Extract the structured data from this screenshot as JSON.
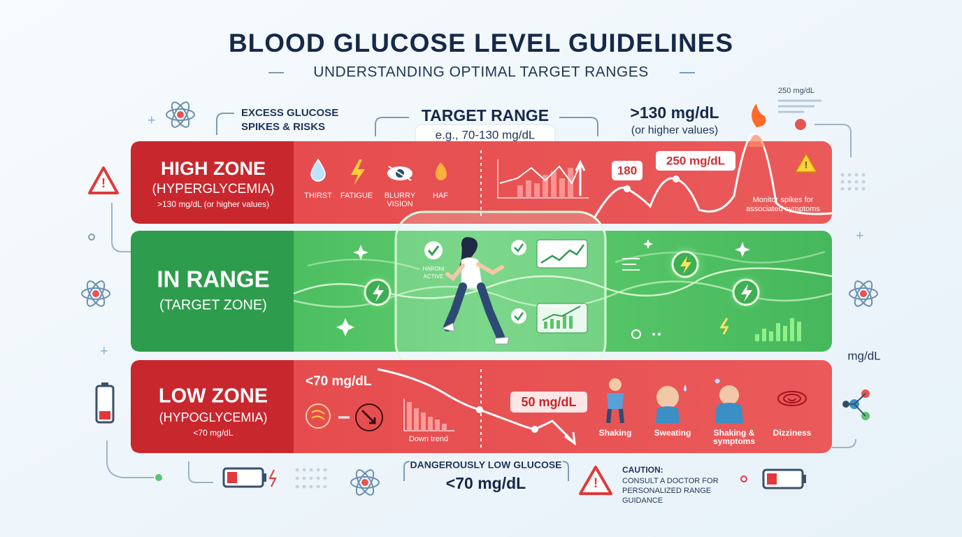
{
  "header": {
    "title": "BLOOD GLUCOSE LEVEL GUIDELINES",
    "subtitle": "UNDERSTANDING OPTIMAL TARGET RANGES"
  },
  "callouts": {
    "excess": [
      "EXCESS GLUCOSE",
      "SPIKES & RISKS"
    ],
    "target": {
      "title": "TARGET RANGE",
      "example": "e.g., 70-130 mg/dL"
    },
    "high_value": {
      "value": ">130 mg/dL",
      "note": "(or higher values)"
    },
    "legend_max": "250 mg/dL"
  },
  "zones": {
    "high": {
      "title": "HIGH ZONE",
      "subtitle": "(HYPERGLYCEMIA)",
      "range": ">130 mg/dL (or higher values)",
      "symptoms": [
        [
          "THIRST"
        ],
        [
          "FATIGUE"
        ],
        [
          "BLURRY",
          "VISION"
        ],
        [
          "HAF"
        ]
      ],
      "peaks": [
        "180",
        "250 mg/dL"
      ],
      "note": [
        "Monitor spikes for",
        "associated symptoms"
      ]
    },
    "in_range": {
      "title": "IN RANGE",
      "subtitle": "(TARGET ZONE)",
      "activity": [
        "HARONI",
        "ACTIVE"
      ]
    },
    "low": {
      "title": "LOW ZONE",
      "subtitle": "(HYPOGLYCEMIA)",
      "range": "<70 mg/dL",
      "reading": "<70 mg/dL",
      "trend": "Down trend",
      "value": "50 mg/dL",
      "symptoms": [
        [
          "Shaking"
        ],
        [
          "Sweating"
        ],
        [
          "Shaking &",
          "symptoms"
        ],
        [
          "Dizziness"
        ]
      ]
    }
  },
  "axis_unit": "mg/dL",
  "footer": {
    "danger": {
      "title": "DANGEROUSLY LOW GLUCOSE",
      "value": "<70 mg/dL"
    },
    "caution": {
      "title": "CAUTION:",
      "text": [
        "CONSULT A DOCTOR FOR",
        "PERSONALIZED RANGE",
        "GUIDANCE"
      ]
    }
  }
}
